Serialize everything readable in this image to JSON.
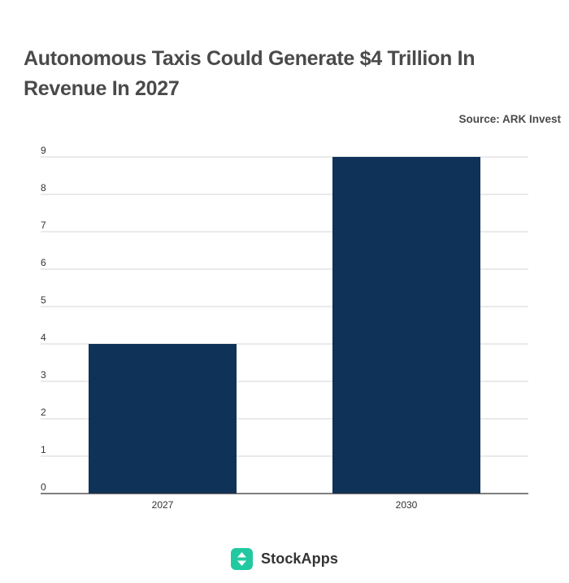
{
  "chart_data": {
    "type": "bar",
    "title": "Autonomous Taxis Could Generate $4 Trillion In Revenue In 2027",
    "source": "Source: ARK Invest",
    "categories": [
      "2027",
      "2030"
    ],
    "values": [
      4,
      9
    ],
    "yticks": [
      "0",
      "1",
      "2",
      "3",
      "4",
      "5",
      "6",
      "7",
      "8",
      "9"
    ],
    "ylim": [
      0,
      9
    ],
    "grid": true,
    "xlabel": "",
    "ylabel": "",
    "bar_color": "#0f3358"
  },
  "footer": {
    "brand": "StockApps",
    "logo_color": "#22c9a0"
  }
}
